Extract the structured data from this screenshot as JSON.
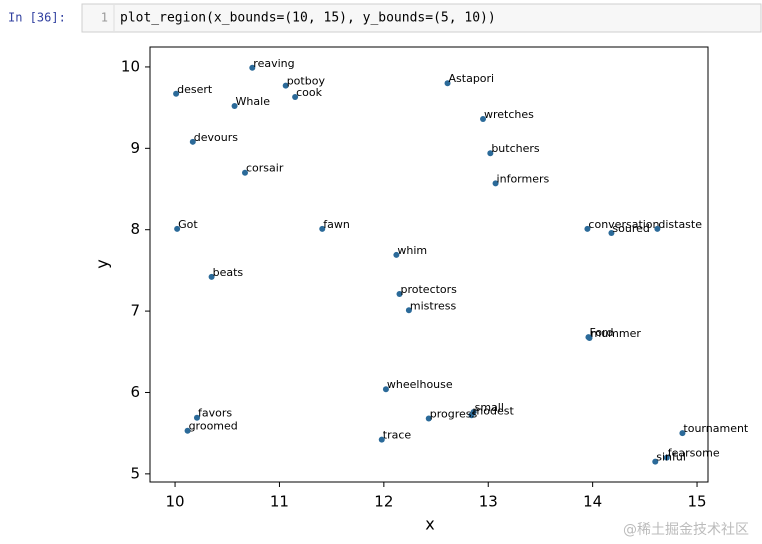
{
  "cell": {
    "prompt": "In [36]:",
    "line_number": "1",
    "code": "plot_region(x_bounds=(10, 15), y_bounds=(5, 10))"
  },
  "chart_data": {
    "type": "scatter",
    "xlabel": "x",
    "ylabel": "y",
    "color": "#2b6a99",
    "labels": [
      "reaving",
      "potboy",
      "cook",
      "desert",
      "Whale",
      "Astapori",
      "wretches",
      "devours",
      "butchers",
      "corsair",
      "informers",
      "Got",
      "fawn",
      "conversation",
      "soured",
      "distaste",
      "whim",
      "beats",
      "protectors",
      "mistress",
      "Ford",
      "mummer",
      "wheelhouse",
      "small",
      "modest",
      "progress",
      "favors",
      "groomed",
      "trace",
      "tournament",
      "fearsome",
      "sinful"
    ],
    "x": [
      10.74,
      11.06,
      11.15,
      10.01,
      10.57,
      12.61,
      12.95,
      10.17,
      13.02,
      10.67,
      13.07,
      10.02,
      11.41,
      13.95,
      14.18,
      14.62,
      12.12,
      10.35,
      12.15,
      12.24,
      13.96,
      13.97,
      12.02,
      12.86,
      12.84,
      12.43,
      10.21,
      10.12,
      11.98,
      14.86,
      14.71,
      14.6
    ],
    "values": [
      9.99,
      9.77,
      9.63,
      9.67,
      9.52,
      9.8,
      9.36,
      9.08,
      8.94,
      8.7,
      8.57,
      8.01,
      8.01,
      8.01,
      7.96,
      8.01,
      7.69,
      7.42,
      7.21,
      7.01,
      6.68,
      6.67,
      6.04,
      5.76,
      5.72,
      5.68,
      5.69,
      5.53,
      5.42,
      5.5,
      5.2,
      5.15
    ],
    "xlim": [
      9.76,
      15.105
    ],
    "ylim": [
      4.9,
      10.245
    ],
    "xticks": [
      10,
      11,
      12,
      13,
      14,
      15
    ],
    "yticks": [
      5,
      6,
      7,
      8,
      9,
      10
    ]
  },
  "watermark": "@稀土掘金技术社区"
}
